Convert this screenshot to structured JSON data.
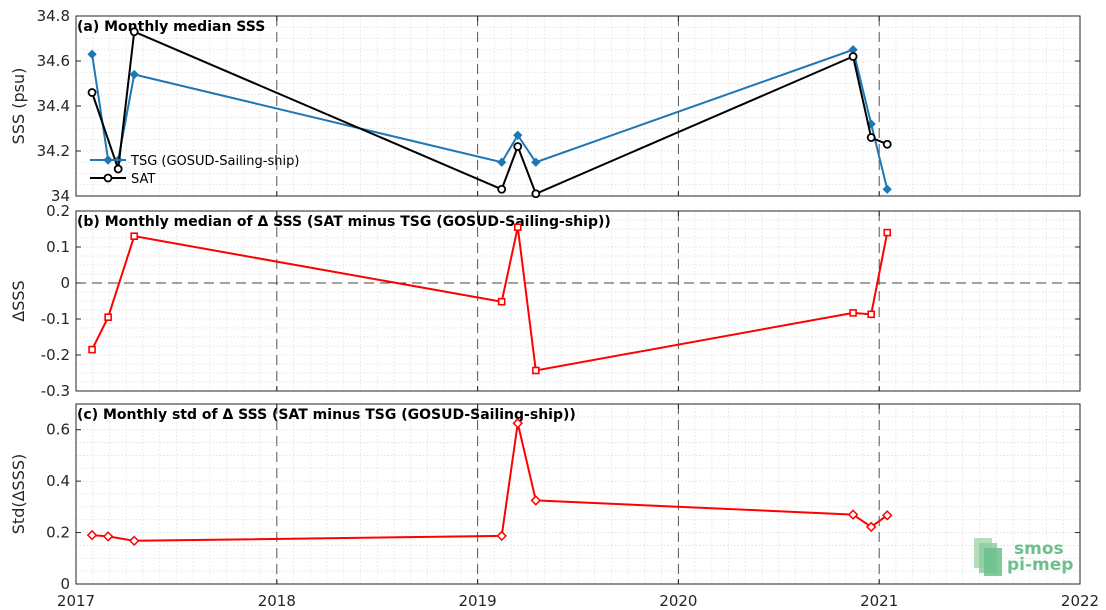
{
  "chart_data": [
    {
      "type": "line",
      "title": "(a) Monthly median SSS",
      "xlabel": "",
      "ylabel": "SSS (psu)",
      "xlim": [
        2017,
        2022
      ],
      "ylim": [
        34.0,
        34.8
      ],
      "x_ticks": [
        "2017",
        "2018",
        "2019",
        "2020",
        "2021",
        "2022"
      ],
      "y_ticks": [
        "34",
        "34.2",
        "34.4",
        "34.6",
        "34.8"
      ],
      "grid": true,
      "legend_placement": "left",
      "series": [
        {
          "name": "TSG (GOSUD-Sailing-ship)",
          "color": "#1f77b4",
          "marker": "diamond",
          "x": [
            2017.08,
            2017.16,
            2017.21,
            2017.29,
            2019.12,
            2019.2,
            2019.29,
            2020.87,
            2020.96,
            2021.04
          ],
          "y": [
            34.63,
            34.16,
            34.16,
            34.54,
            34.15,
            34.27,
            34.15,
            34.65,
            34.32,
            34.03
          ]
        },
        {
          "name": "SAT",
          "color": "#000000",
          "marker": "circle",
          "x": [
            2017.08,
            2017.21,
            2017.29,
            2019.12,
            2019.2,
            2019.29,
            2020.87,
            2020.96,
            2021.04
          ],
          "y": [
            34.46,
            34.12,
            34.73,
            34.03,
            34.22,
            34.01,
            34.62,
            34.26,
            34.23
          ]
        }
      ]
    },
    {
      "type": "line",
      "title": "(b) Monthly median of Δ SSS (SAT minus TSG (GOSUD-Sailing-ship))",
      "xlabel": "",
      "ylabel": "ΔSSS",
      "xlim": [
        2017,
        2022
      ],
      "ylim": [
        -0.3,
        0.2
      ],
      "x_ticks": [
        "2017",
        "2018",
        "2019",
        "2020",
        "2021",
        "2022"
      ],
      "y_ticks": [
        "-0.3",
        "-0.2",
        "-0.1",
        "0",
        "0.1",
        "0.2"
      ],
      "grid": true,
      "series": [
        {
          "color": "#ff0000",
          "marker": "square",
          "x": [
            2017.08,
            2017.16,
            2017.29,
            2019.12,
            2019.2,
            2019.29,
            2020.87,
            2020.96,
            2021.04
          ],
          "y": [
            -0.185,
            -0.095,
            0.13,
            -0.052,
            0.155,
            -0.243,
            -0.083,
            -0.087,
            0.14
          ]
        }
      ]
    },
    {
      "type": "line",
      "title": "(c) Monthly std of Δ SSS (SAT minus TSG (GOSUD-Sailing-ship))",
      "xlabel": "",
      "ylabel": "Std(ΔSSS)",
      "xlim": [
        2017,
        2022
      ],
      "ylim": [
        0,
        0.7
      ],
      "x_ticks": [
        "2017",
        "2018",
        "2019",
        "2020",
        "2021",
        "2022"
      ],
      "y_ticks": [
        "0",
        "0.2",
        "0.4",
        "0.6"
      ],
      "grid": true,
      "series": [
        {
          "color": "#ff0000",
          "marker": "diamond",
          "x": [
            2017.08,
            2017.16,
            2017.29,
            2019.12,
            2019.2,
            2019.29,
            2020.87,
            2020.96,
            2021.04
          ],
          "y": [
            0.19,
            0.185,
            0.168,
            0.187,
            0.625,
            0.325,
            0.27,
            0.222,
            0.267
          ]
        }
      ]
    }
  ],
  "logo": {
    "line1": "smos",
    "line2": "pi-mep",
    "color": "#6cc08b"
  }
}
